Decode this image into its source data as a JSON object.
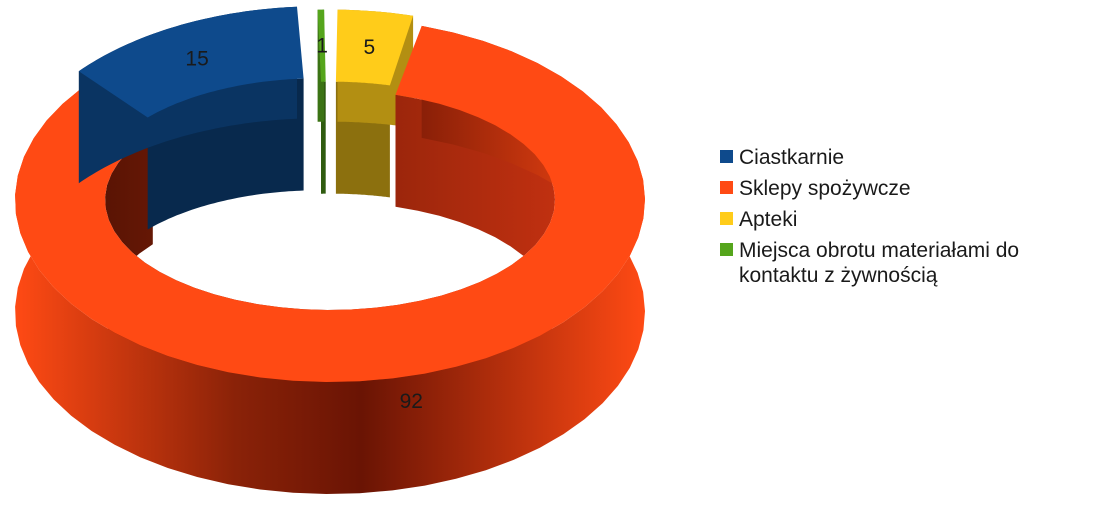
{
  "chart_data": {
    "type": "pie",
    "variant": "3d-donut-exploded",
    "title": "",
    "categories": [
      "Ciastkarnie",
      "Sklepy spożywcze",
      "Apteki",
      "Miejsca obrotu materiałami do kontaktu z żywnością"
    ],
    "values": [
      15,
      92,
      5,
      1
    ],
    "colors": [
      "#0e4a8c",
      "#ff4a14",
      "#ffcc1a",
      "#55a51c"
    ],
    "data_labels": [
      "15",
      "92",
      "5",
      "1"
    ],
    "legend_position": "right",
    "order_clockwise_from_top": [
      "Apteki",
      "Sklepy spożywcze",
      "Ciastkarnie",
      "Miejsca obrotu materiałami do kontaktu z żywnością"
    ]
  }
}
